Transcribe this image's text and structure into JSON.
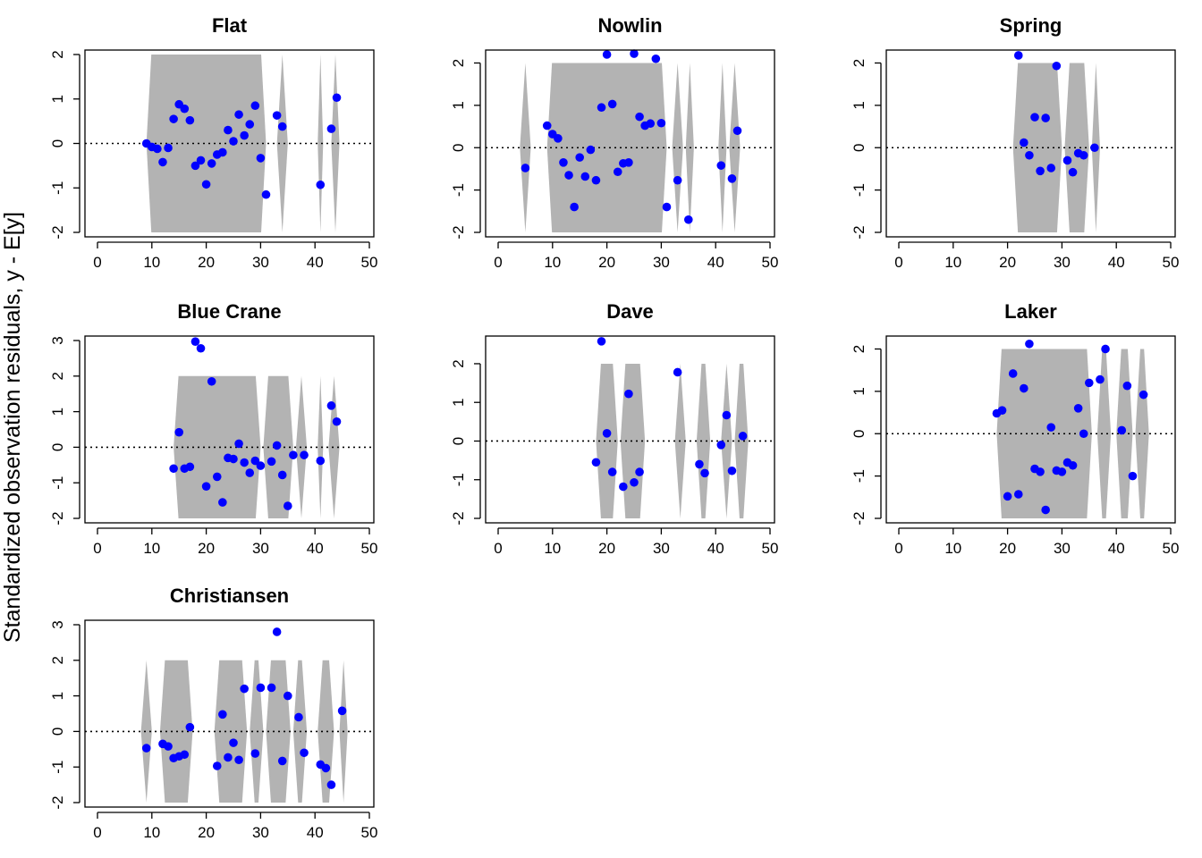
{
  "figure": {
    "ylabel": "Standardized observation residuals, y - E[y]",
    "colors": {
      "band": "#b3b3b3",
      "point": "#0000ff",
      "axis": "#000000",
      "zero_line": "#000000"
    }
  },
  "chart_data": [
    {
      "type": "scatter",
      "title": "Flat",
      "xlim": [
        0,
        50
      ],
      "ylim": [
        -2,
        2
      ],
      "xticks": [
        0,
        10,
        20,
        30,
        40,
        50
      ],
      "yticks": [
        -2,
        -1,
        0,
        1,
        2
      ],
      "band_segments": [
        [
          9,
          31
        ],
        [
          33,
          35
        ],
        [
          40.5,
          41.5
        ],
        [
          43,
          44.5
        ]
      ],
      "band_halfwidth": 2,
      "zero_line": true,
      "x": [
        9,
        10,
        11,
        12,
        13,
        14,
        15,
        16,
        17,
        18,
        19,
        20,
        21,
        22,
        23,
        24,
        25,
        26,
        27,
        28,
        29,
        30,
        31,
        33,
        34,
        41,
        43,
        44
      ],
      "y": [
        0.0,
        -0.08,
        -0.12,
        -0.42,
        -0.1,
        0.55,
        0.88,
        0.78,
        0.52,
        -0.5,
        -0.38,
        -0.92,
        -0.45,
        -0.25,
        -0.2,
        0.3,
        0.05,
        0.65,
        0.18,
        0.43,
        0.85,
        -0.33,
        -1.15,
        0.63,
        0.38,
        -0.93,
        0.33,
        1.03
      ]
    },
    {
      "type": "scatter",
      "title": "Nowlin",
      "xlim": [
        0,
        50
      ],
      "ylim": [
        -2,
        2.2
      ],
      "xticks": [
        0,
        10,
        20,
        30,
        40,
        50
      ],
      "yticks": [
        -2,
        -1,
        0,
        1,
        2
      ],
      "band_segments": [
        [
          4,
          6
        ],
        [
          9,
          31
        ],
        [
          32,
          34
        ],
        [
          34.5,
          36
        ],
        [
          40.5,
          42
        ],
        [
          42.5,
          44.5
        ]
      ],
      "band_halfwidth": 2,
      "zero_line": true,
      "x": [
        5,
        9,
        10,
        11,
        12,
        13,
        14,
        15,
        16,
        17,
        18,
        19,
        20,
        21,
        22,
        23,
        24,
        25,
        26,
        27,
        28,
        29,
        30,
        31,
        33,
        35,
        41,
        43,
        44
      ],
      "y": [
        -0.48,
        0.52,
        0.32,
        0.22,
        -0.35,
        -0.65,
        -1.4,
        -0.23,
        -0.68,
        -0.05,
        -0.77,
        0.95,
        2.2,
        1.03,
        -0.57,
        -0.37,
        -0.35,
        2.22,
        0.73,
        0.52,
        0.57,
        2.1,
        0.58,
        -1.4,
        -0.77,
        -1.7,
        -0.42,
        -0.73,
        0.4
      ]
    },
    {
      "type": "scatter",
      "title": "Spring",
      "xlim": [
        0,
        50
      ],
      "ylim": [
        -2,
        2.2
      ],
      "xticks": [
        0,
        10,
        20,
        30,
        40,
        50
      ],
      "yticks": [
        -2,
        -1,
        0,
        1,
        2
      ],
      "band_segments": [
        [
          21,
          30
        ],
        [
          30.5,
          35
        ],
        [
          35.5,
          37
        ]
      ],
      "band_halfwidth": 2,
      "zero_line": true,
      "x": [
        22,
        23,
        24,
        25,
        26,
        27,
        28,
        29,
        31,
        32,
        33,
        34,
        36
      ],
      "y": [
        2.18,
        0.12,
        -0.18,
        0.72,
        -0.55,
        0.7,
        -0.48,
        1.93,
        -0.3,
        -0.58,
        -0.13,
        -0.18,
        0.0
      ]
    },
    {
      "type": "scatter",
      "title": "Blue Crane",
      "xlim": [
        0,
        50
      ],
      "ylim": [
        -2,
        3
      ],
      "xticks": [
        0,
        10,
        20,
        30,
        40,
        50
      ],
      "yticks": [
        -2,
        -1,
        0,
        1,
        2,
        3
      ],
      "band_segments": [
        [
          14,
          30
        ],
        [
          30.5,
          36
        ],
        [
          36.5,
          38.5
        ],
        [
          40.5,
          41.5
        ],
        [
          42.5,
          44.5
        ]
      ],
      "band_halfwidth": 2,
      "zero_line": true,
      "x": [
        14,
        15,
        16,
        17,
        18,
        19,
        20,
        21,
        22,
        23,
        24,
        25,
        26,
        27,
        28,
        29,
        30,
        32,
        33,
        34,
        35,
        36,
        38,
        41,
        43,
        44
      ],
      "y": [
        -0.6,
        0.42,
        -0.6,
        -0.55,
        2.97,
        2.78,
        -1.1,
        1.85,
        -0.83,
        -1.55,
        -0.3,
        -0.33,
        0.1,
        -0.43,
        -0.72,
        -0.38,
        -0.52,
        -0.4,
        0.05,
        -0.78,
        -1.65,
        -0.22,
        -0.22,
        -0.38,
        1.17,
        0.72
      ]
    },
    {
      "type": "scatter",
      "title": "Dave",
      "xlim": [
        0,
        50
      ],
      "ylim": [
        -2,
        2.6
      ],
      "xticks": [
        0,
        10,
        20,
        30,
        40,
        50
      ],
      "yticks": [
        -2,
        -1,
        0,
        1,
        2
      ],
      "band_segments": [
        [
          18,
          22
        ],
        [
          22.5,
          27
        ],
        [
          32.5,
          34.5
        ],
        [
          36.5,
          39
        ],
        [
          41,
          43
        ],
        [
          43.5,
          46
        ]
      ],
      "band_halfwidth": 2,
      "zero_line": true,
      "x": [
        18,
        19,
        20,
        21,
        23,
        24,
        25,
        26,
        33,
        37,
        38,
        41,
        42,
        43,
        45
      ],
      "y": [
        -0.55,
        2.58,
        0.2,
        -0.8,
        -1.18,
        1.22,
        -1.07,
        -0.8,
        1.78,
        -0.6,
        -0.83,
        -0.1,
        0.67,
        -0.77,
        0.13
      ]
    },
    {
      "type": "scatter",
      "title": "Laker",
      "xlim": [
        0,
        50
      ],
      "ylim": [
        -2,
        2.2
      ],
      "xticks": [
        0,
        10,
        20,
        30,
        40,
        50
      ],
      "yticks": [
        -2,
        -1,
        0,
        1,
        2
      ],
      "band_segments": [
        [
          18,
          35.5
        ],
        [
          36.5,
          39
        ],
        [
          40,
          43
        ],
        [
          43.5,
          46
        ]
      ],
      "band_halfwidth": 2,
      "zero_line": true,
      "x": [
        18,
        19,
        20,
        21,
        22,
        23,
        24,
        25,
        26,
        27,
        28,
        29,
        30,
        31,
        32,
        33,
        34,
        35,
        37,
        38,
        41,
        42,
        43,
        45
      ],
      "y": [
        0.48,
        0.55,
        -1.48,
        1.42,
        -1.43,
        1.07,
        2.12,
        -0.83,
        -0.9,
        -1.8,
        0.15,
        -0.87,
        -0.9,
        -0.68,
        -0.75,
        0.6,
        0.0,
        1.2,
        1.28,
        2.0,
        0.08,
        1.13,
        -1.0,
        0.92
      ]
    },
    {
      "type": "scatter",
      "title": "Christiansen",
      "xlim": [
        0,
        50
      ],
      "ylim": [
        -2,
        3
      ],
      "xticks": [
        0,
        10,
        20,
        30,
        40,
        50
      ],
      "yticks": [
        -2,
        -1,
        0,
        1,
        2,
        3
      ],
      "band_segments": [
        [
          8,
          10
        ],
        [
          11.5,
          17.5
        ],
        [
          21.5,
          27.5
        ],
        [
          28,
          30.5
        ],
        [
          31,
          35.5
        ],
        [
          36,
          38.5
        ],
        [
          40.5,
          43.5
        ],
        [
          44.5,
          46
        ]
      ],
      "band_halfwidth": 2,
      "zero_line": true,
      "x": [
        9,
        12,
        13,
        14,
        15,
        16,
        17,
        22,
        23,
        24,
        25,
        26,
        27,
        29,
        30,
        32,
        33,
        34,
        35,
        37,
        38,
        41,
        42,
        43,
        45
      ],
      "y": [
        -0.47,
        -0.35,
        -0.42,
        -0.75,
        -0.7,
        -0.65,
        0.12,
        -0.97,
        0.48,
        -0.73,
        -0.32,
        -0.8,
        1.2,
        -0.62,
        1.23,
        1.23,
        2.8,
        -0.83,
        1.0,
        0.4,
        -0.6,
        -0.93,
        -1.03,
        -1.5,
        0.58
      ]
    }
  ]
}
